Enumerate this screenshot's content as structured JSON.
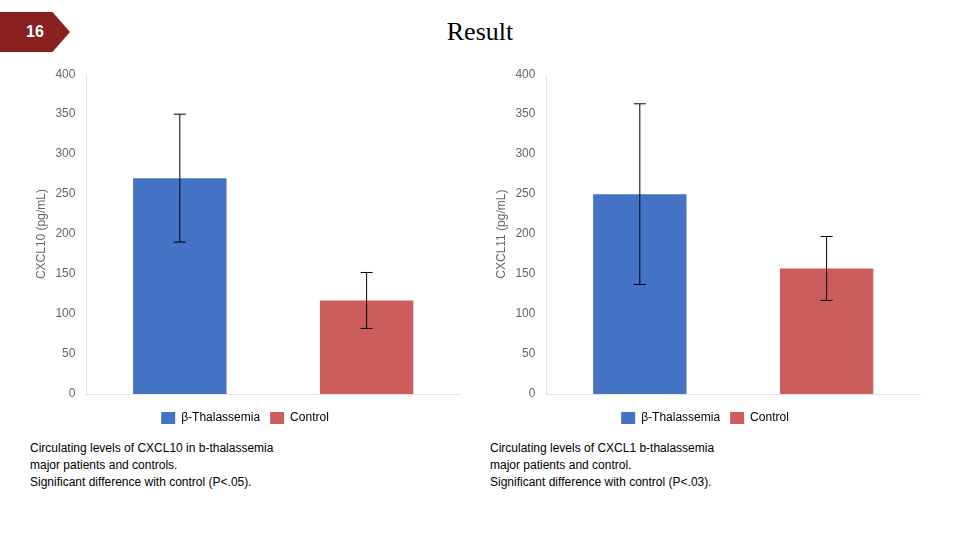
{
  "title": "Result",
  "annotations": [
    "16"
  ],
  "chart_data": [
    {
      "type": "bar",
      "ylabel": "CXCL10 (pg/mL)",
      "categories": [
        "β-Thalassemia",
        "Control"
      ],
      "values": [
        270,
        117
      ],
      "errors": [
        80,
        35
      ],
      "colors": [
        "#4472C4",
        "#CD5C5C"
      ],
      "ylim": [
        0,
        400
      ],
      "yticks": [
        0,
        50,
        100,
        150,
        200,
        250,
        300,
        350,
        400
      ],
      "grid": false,
      "legend": "bottom",
      "tick_labels": "y",
      "annotations": [
        "Circulating levels of CXCL10 in b-thalassemia\nmajor patients and controls.\nSignificant difference with control (P<.05)."
      ]
    },
    {
      "type": "bar",
      "ylabel": "CXCL11 (pg/mL)",
      "categories": [
        "β-Thalassemia",
        "Control"
      ],
      "values": [
        250,
        157
      ],
      "errors": [
        113,
        40
      ],
      "colors": [
        "#4472C4",
        "#CD5C5C"
      ],
      "ylim": [
        0,
        400
      ],
      "yticks": [
        0,
        50,
        100,
        150,
        200,
        250,
        300,
        350,
        400
      ],
      "grid": false,
      "legend": "bottom",
      "tick_labels": "y",
      "annotations": [
        "Circulating levels of CXCL1 b-thalassemia\nmajor patients and control.\nSignificant difference with control (P<.03)."
      ]
    }
  ]
}
